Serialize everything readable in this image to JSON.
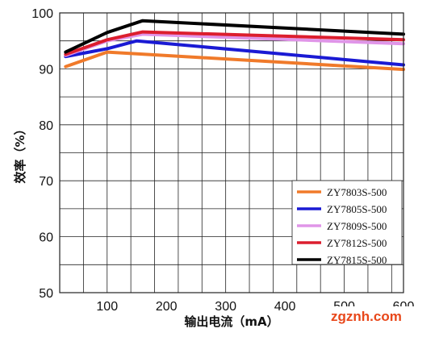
{
  "chart_data": {
    "type": "line",
    "xlabel": "输出电流（mA）",
    "ylabel": "效率（%）",
    "xlim": [
      20,
      600
    ],
    "ylim": [
      50,
      100
    ],
    "x_ticks": [
      100,
      200,
      300,
      400,
      500,
      600
    ],
    "y_ticks": [
      50,
      60,
      70,
      80,
      90,
      100
    ],
    "x_tick_labels": [
      "100",
      "200",
      "300",
      "400",
      "500",
      "600"
    ],
    "y_tick_labels": [
      "50",
      "60",
      "70",
      "80",
      "90",
      "100"
    ],
    "grid": true,
    "legend_position": "bottom-right",
    "series": [
      {
        "name": "ZY7803S-500",
        "color": "#f07a2a",
        "x": [
          30,
          100,
          150,
          600
        ],
        "y": [
          90.4,
          93.0,
          92.7,
          89.9
        ]
      },
      {
        "name": "ZY7805S-500",
        "color": "#1a1ad4",
        "x": [
          30,
          100,
          150,
          600
        ],
        "y": [
          92.2,
          93.6,
          95.0,
          90.7
        ]
      },
      {
        "name": "ZY7809S-500",
        "color": "#e095e8",
        "x": [
          30,
          100,
          160,
          600
        ],
        "y": [
          92.4,
          95.0,
          96.2,
          94.5
        ]
      },
      {
        "name": "ZY7812S-500",
        "color": "#dc1e2e",
        "x": [
          30,
          100,
          160,
          600
        ],
        "y": [
          92.6,
          95.2,
          96.6,
          95.2
        ]
      },
      {
        "name": "ZY7815S-500",
        "color": "#000000",
        "x": [
          30,
          100,
          160,
          600
        ],
        "y": [
          93.0,
          96.5,
          98.6,
          96.2
        ]
      }
    ]
  },
  "watermark": {
    "text": "zgznh.com",
    "color": "#e8471a"
  }
}
